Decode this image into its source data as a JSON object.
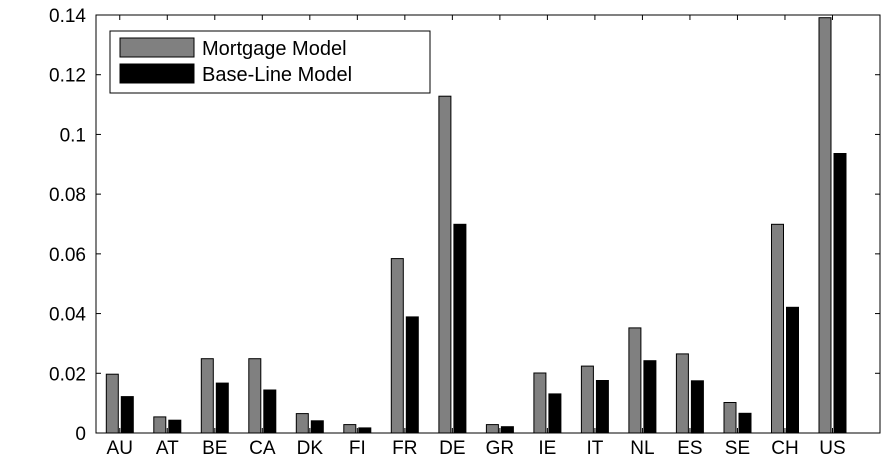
{
  "chart_data": {
    "type": "bar",
    "categories": [
      "AU",
      "AT",
      "BE",
      "CA",
      "DK",
      "FI",
      "FR",
      "DE",
      "GR",
      "IE",
      "IT",
      "NL",
      "ES",
      "SE",
      "CH",
      "US"
    ],
    "series": [
      {
        "name": "Mortgage Model",
        "color": "#808080",
        "values": [
          0.0197,
          0.0054,
          0.0249,
          0.0249,
          0.0065,
          0.0028,
          0.0584,
          0.1128,
          0.0028,
          0.0201,
          0.0224,
          0.0352,
          0.0265,
          0.0102,
          0.0699,
          0.1391
        ]
      },
      {
        "name": "Base-Line Model",
        "color": "#000000",
        "values": [
          0.0122,
          0.0043,
          0.0167,
          0.0144,
          0.0041,
          0.0017,
          0.0389,
          0.0699,
          0.0021,
          0.0131,
          0.0176,
          0.0242,
          0.0175,
          0.0066,
          0.0421,
          0.0936
        ]
      }
    ],
    "ylim": [
      0,
      0.14
    ],
    "yticks": [
      "0",
      "0.02",
      "0.04",
      "0.06",
      "0.08",
      "0.1",
      "0.12",
      "0.14"
    ],
    "ytick_values": [
      0,
      0.02,
      0.04,
      0.06,
      0.08,
      0.1,
      0.12,
      0.14
    ],
    "legend_position": "top-left",
    "grid": false
  }
}
